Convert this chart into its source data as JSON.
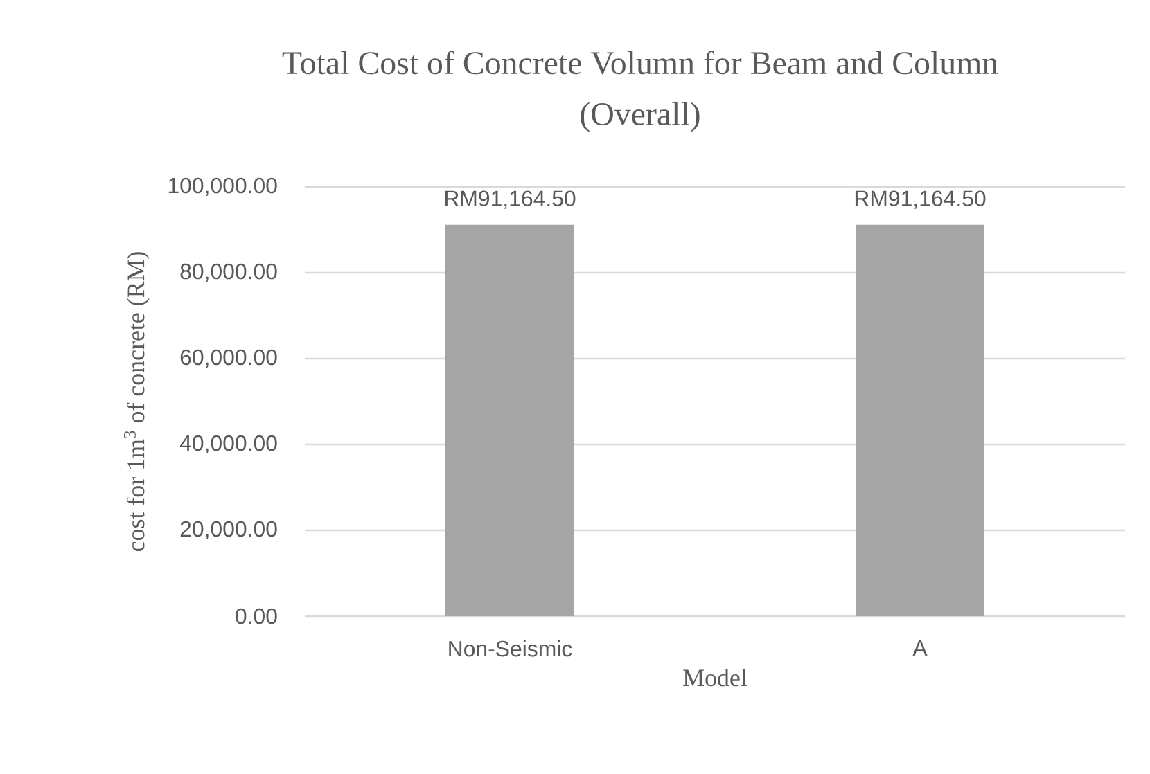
{
  "chart_data": {
    "type": "bar",
    "title": "Total Cost of Concrete Volumn for Beam and Column (Overall)",
    "xlabel": "Model",
    "ylabel": "cost for 1m$^{3}$ of  concrete (RM)",
    "categories": [
      "Non-Seismic",
      "A"
    ],
    "values": [
      91164.5,
      91164.5
    ],
    "color": "#a5a5a5",
    "value_labels": [
      "RM91,164.50",
      "RM91,164.50"
    ],
    "ylim": [
      0,
      100000
    ],
    "yticks": [
      {
        "value": 0,
        "label": "0.00"
      },
      {
        "value": 20000,
        "label": "20,000.00"
      },
      {
        "value": 40000,
        "label": "40,000.00"
      },
      {
        "value": 60000,
        "label": "60,000.00"
      },
      {
        "value": 80000,
        "label": "80,000.00"
      },
      {
        "value": 100000,
        "label": "100,000.00"
      }
    ],
    "grid": "y"
  }
}
